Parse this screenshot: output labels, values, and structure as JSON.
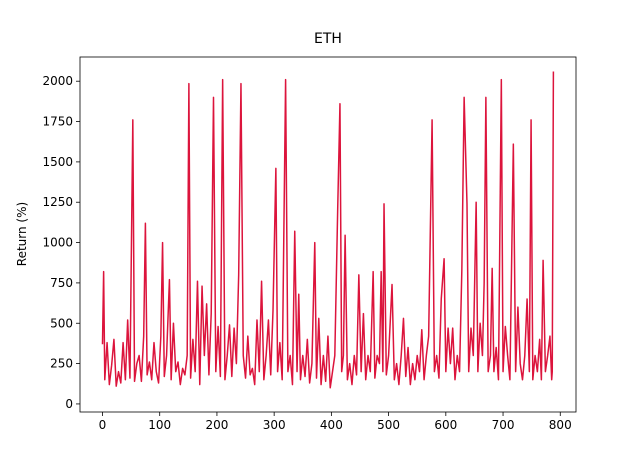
{
  "chart_data": {
    "type": "line",
    "title": "ETH",
    "y_label": "Return  (%)",
    "x": [
      0,
      2,
      4,
      8,
      12,
      16,
      20,
      24,
      28,
      32,
      36,
      40,
      44,
      48,
      53,
      56,
      60,
      64,
      68,
      72,
      75,
      78,
      82,
      86,
      90,
      94,
      98,
      102,
      105,
      108,
      112,
      117,
      120,
      124,
      128,
      132,
      136,
      140,
      144,
      148,
      151,
      154,
      158,
      162,
      166,
      170,
      174,
      178,
      182,
      186,
      190,
      194,
      198,
      202,
      206,
      210,
      214,
      218,
      222,
      226,
      230,
      234,
      238,
      242,
      246,
      250,
      254,
      258,
      262,
      266,
      270,
      274,
      278,
      282,
      286,
      290,
      294,
      298,
      303,
      306,
      310,
      314,
      320,
      324,
      328,
      332,
      336,
      340,
      343,
      346,
      350,
      354,
      358,
      362,
      366,
      371,
      374,
      378,
      382,
      386,
      390,
      394,
      398,
      402,
      406,
      411,
      415,
      418,
      421,
      424,
      428,
      432,
      436,
      440,
      444,
      448,
      452,
      456,
      460,
      464,
      468,
      473,
      476,
      480,
      484,
      487,
      490,
      492,
      496,
      500,
      506,
      510,
      514,
      518,
      522,
      526,
      530,
      534,
      538,
      542,
      546,
      550,
      554,
      558,
      562,
      566,
      570,
      576,
      580,
      584,
      588,
      592,
      597,
      600,
      604,
      608,
      612,
      616,
      620,
      624,
      628,
      632,
      637,
      640,
      644,
      648,
      653,
      656,
      660,
      664,
      667,
      670,
      674,
      678,
      681,
      684,
      688,
      692,
      697,
      700,
      704,
      708,
      712,
      718,
      722,
      726,
      730,
      734,
      738,
      742,
      746,
      749,
      752,
      756,
      760,
      764,
      767,
      770,
      774,
      778,
      782,
      785,
      786,
      788
    ],
    "series": [
      {
        "name": "ETH",
        "color": "#dc143c",
        "values": [
          370,
          820,
          150,
          380,
          120,
          240,
          400,
          110,
          200,
          130,
          380,
          150,
          520,
          160,
          1760,
          140,
          250,
          300,
          140,
          420,
          1120,
          180,
          260,
          150,
          380,
          200,
          130,
          420,
          1000,
          170,
          300,
          770,
          150,
          500,
          200,
          260,
          120,
          220,
          180,
          300,
          1985,
          160,
          400,
          200,
          760,
          120,
          730,
          300,
          620,
          180,
          560,
          1900,
          200,
          480,
          170,
          2010,
          150,
          300,
          490,
          170,
          470,
          250,
          800,
          1985,
          300,
          160,
          420,
          180,
          220,
          120,
          520,
          200,
          760,
          150,
          300,
          520,
          180,
          580,
          1460,
          200,
          380,
          150,
          2010,
          200,
          300,
          120,
          1070,
          200,
          680,
          150,
          300,
          170,
          400,
          130,
          250,
          1000,
          160,
          530,
          120,
          300,
          140,
          420,
          100,
          200,
          300,
          1200,
          1860,
          200,
          300,
          1045,
          150,
          250,
          120,
          300,
          180,
          800,
          200,
          560,
          150,
          300,
          200,
          820,
          160,
          300,
          250,
          820,
          200,
          1240,
          180,
          300,
          740,
          150,
          250,
          120,
          300,
          530,
          170,
          350,
          120,
          250,
          150,
          300,
          200,
          460,
          150,
          300,
          420,
          1760,
          200,
          300,
          160,
          650,
          900,
          200,
          470,
          250,
          470,
          150,
          300,
          200,
          830,
          1900,
          1240,
          200,
          470,
          300,
          1250,
          200,
          500,
          300,
          750,
          1900,
          200,
          300,
          840,
          200,
          350,
          150,
          2010,
          200,
          480,
          300,
          150,
          1610,
          200,
          600,
          250,
          150,
          300,
          650,
          200,
          1760,
          150,
          300,
          200,
          400,
          150,
          890,
          200,
          300,
          420,
          150,
          200,
          2060
        ]
      }
    ],
    "xlim": [
      -39.3,
      827.5
    ],
    "ylim": [
      -50,
      2150
    ],
    "xticks": [
      0,
      100,
      200,
      300,
      400,
      500,
      600,
      700,
      800
    ],
    "yticks": [
      0,
      250,
      500,
      750,
      1000,
      1250,
      1500,
      1750,
      2000
    ]
  }
}
